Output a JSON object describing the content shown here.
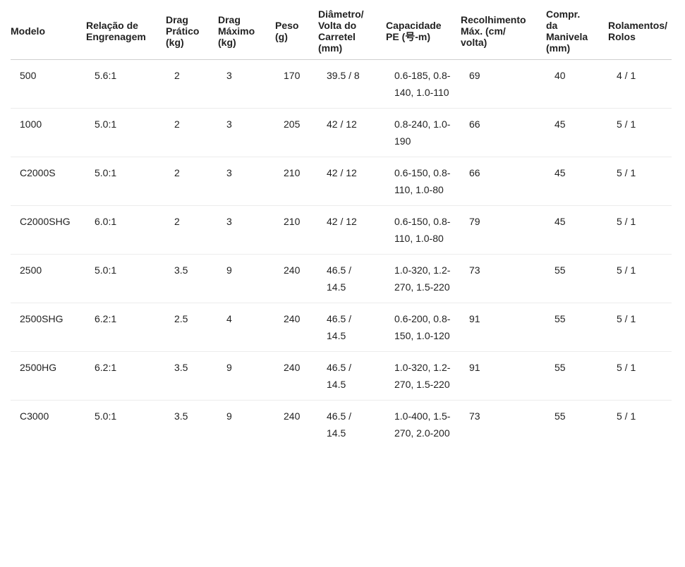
{
  "table": {
    "headers": [
      "Modelo",
      "Relação de Engrenagem",
      "Drag Prático (kg)",
      "Drag Máximo (kg)",
      "Peso (g)",
      "Diâmetro/ Volta do Carretel (mm)",
      "Capacidade PE (号-m)",
      "Recolhimento Máx. (cm/ volta)",
      "Compr. da Manivela (mm)",
      "Rolamentos/ Rolos"
    ],
    "rows": [
      [
        "500",
        "5.6:1",
        "2",
        "3",
        "170",
        "39.5 / 8",
        "0.6-185, 0.8-140, 1.0-110",
        "69",
        "40",
        "4 / 1"
      ],
      [
        "1000",
        "5.0:1",
        "2",
        "3",
        "205",
        "42 / 12",
        "0.8-240, 1.0-190",
        "66",
        "45",
        "5 / 1"
      ],
      [
        "C2000S",
        "5.0:1",
        "2",
        "3",
        "210",
        "42 / 12",
        "0.6-150, 0.8-110, 1.0-80",
        "66",
        "45",
        "5 / 1"
      ],
      [
        "C2000SHG",
        "6.0:1",
        "2",
        "3",
        "210",
        "42 / 12",
        "0.6-150, 0.8-110, 1.0-80",
        "79",
        "45",
        "5 / 1"
      ],
      [
        "2500",
        "5.0:1",
        "3.5",
        "9",
        "240",
        "46.5 / 14.5",
        "1.0-320, 1.2-270, 1.5-220",
        "73",
        "55",
        "5 / 1"
      ],
      [
        "2500SHG",
        "6.2:1",
        "2.5",
        "4",
        "240",
        "46.5 / 14.5",
        "0.6-200, 0.8-150, 1.0-120",
        "91",
        "55",
        "5 / 1"
      ],
      [
        "2500HG",
        "6.2:1",
        "3.5",
        "9",
        "240",
        "46.5 / 14.5",
        "1.0-320, 1.2-270, 1.5-220",
        "91",
        "55",
        "5 / 1"
      ],
      [
        "C3000",
        "5.0:1",
        "3.5",
        "9",
        "240",
        "46.5 / 14.5",
        "1.0-400, 1.5-270, 2.0-200",
        "73",
        "55",
        "5 / 1"
      ]
    ]
  }
}
